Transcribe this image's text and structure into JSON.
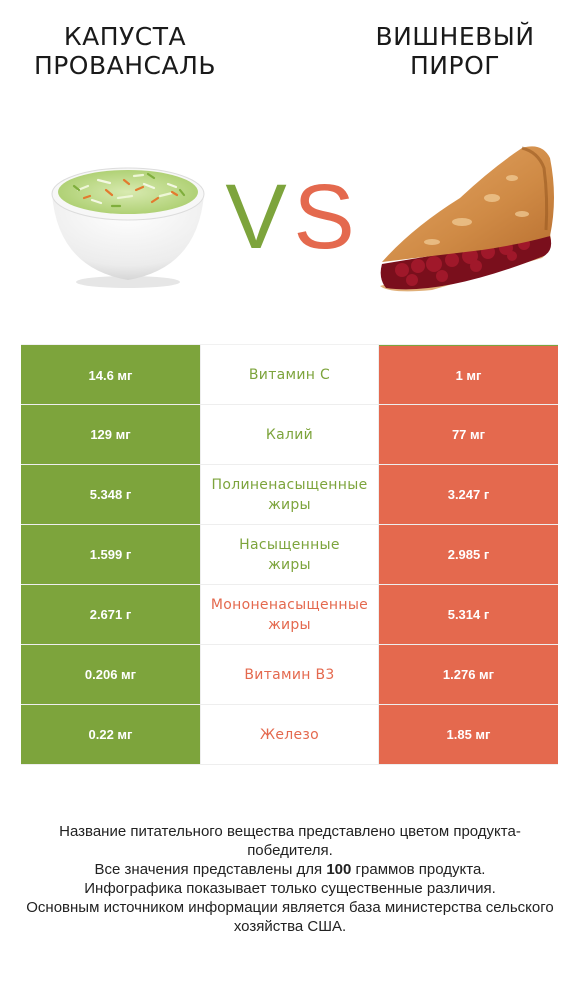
{
  "left_food": {
    "title": "КАПУСТА\nПРОВАНСАЛЬ",
    "title_lines": [
      "КАПУСТА",
      "ПРОВАНСАЛЬ"
    ],
    "image": "coleslaw-bowl",
    "color": "#7da43c"
  },
  "right_food": {
    "title_lines": [
      "ВИШНЕВЫЙ",
      "ПИРОГ"
    ],
    "image": "cherry-pie-slice",
    "color": "#e4694e"
  },
  "vs": {
    "v": "V",
    "s": "S"
  },
  "rows": [
    {
      "nutrient": "Витамин C",
      "left": "14.6 мг",
      "right": "1 мг",
      "winner": "left"
    },
    {
      "nutrient": "Калий",
      "left": "129 мг",
      "right": "77 мг",
      "winner": "left"
    },
    {
      "nutrient": "Полиненасыщенные жиры",
      "left": "5.348 г",
      "right": "3.247 г",
      "winner": "left"
    },
    {
      "nutrient": "Насыщенные\nжиры",
      "left": "1.599 г",
      "right": "2.985 г",
      "winner": "left"
    },
    {
      "nutrient": "Мононенасыщенные жиры",
      "left": "2.671 г",
      "right": "5.314 г",
      "winner": "right"
    },
    {
      "nutrient": "Витамин B3",
      "left": "0.206 мг",
      "right": "1.276 мг",
      "winner": "right"
    },
    {
      "nutrient": "Железо",
      "left": "0.22 мг",
      "right": "1.85 мг",
      "winner": "right"
    }
  ],
  "footnote": {
    "line1": "Название питательного вещества представлено цветом продукта-победителя.",
    "line2_prefix": "Все значения представлены для ",
    "line2_bold": "100",
    "line2_suffix": " граммов продукта.",
    "line3": "Инфографика показывает только существенные различия.",
    "line4": "Основным источником информации является база министерства сельского хозяйства США."
  }
}
